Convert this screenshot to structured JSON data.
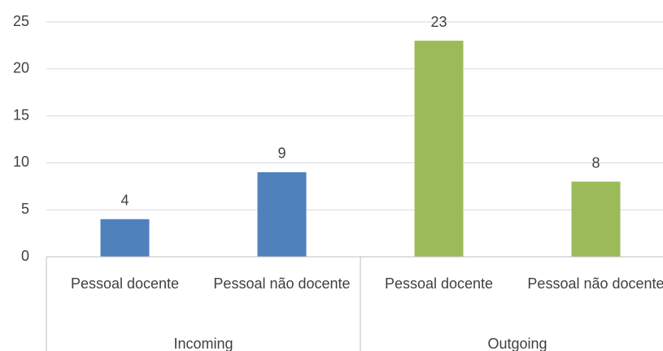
{
  "chart_data": {
    "type": "bar",
    "categories": [
      "Pessoal docente",
      "Pessoal não docente",
      "Pessoal docente",
      "Pessoal não docente"
    ],
    "groups": [
      "Incoming",
      "Outgoing"
    ],
    "group_colors": [
      "#4f81bd",
      "#9bbb59"
    ],
    "values": [
      4,
      9,
      23,
      8
    ],
    "ylim": [
      0,
      25
    ],
    "yticks": [
      0,
      5,
      10,
      15,
      20,
      25
    ],
    "grid": true
  }
}
